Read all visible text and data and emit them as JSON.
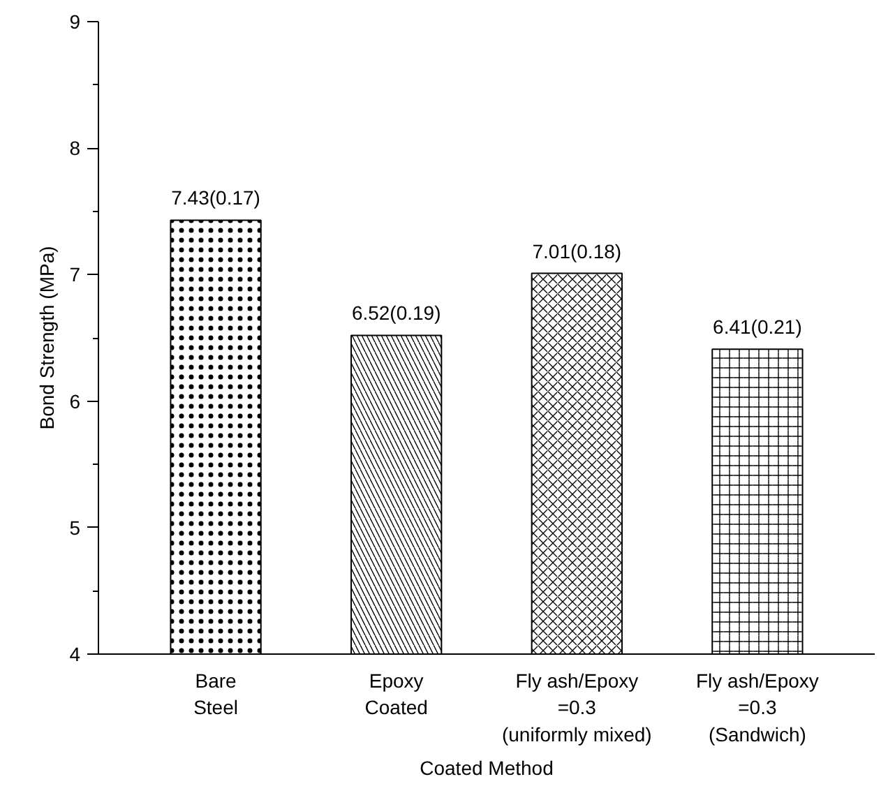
{
  "chart_data": {
    "type": "bar",
    "xlabel": "Coated Method",
    "ylabel": "Bond Strength (MPa)",
    "categories": [
      "Bare\nSteel",
      "Epoxy\nCoated",
      "Fly ash/Epoxy\n=0.3\n(uniformly mixed)",
      "Fly ash/Epoxy\n=0.3\n(Sandwich)"
    ],
    "values": [
      7.43,
      6.52,
      7.01,
      6.41
    ],
    "value_labels": [
      "7.43(0.17)",
      "6.52(0.19)",
      "7.01(0.18)",
      "6.41(0.21)"
    ],
    "color": "#000000",
    "ylim": [
      4,
      9
    ],
    "yticks": [
      4,
      {
        "value": 4.5,
        "label": null
      },
      5,
      {
        "value": 5.5,
        "label": null
      },
      6,
      {
        "value": 6.5,
        "label": null
      },
      7,
      {
        "value": 7.5,
        "label": null
      },
      8,
      {
        "value": 8.5,
        "label": null
      },
      9
    ],
    "grid": false
  }
}
